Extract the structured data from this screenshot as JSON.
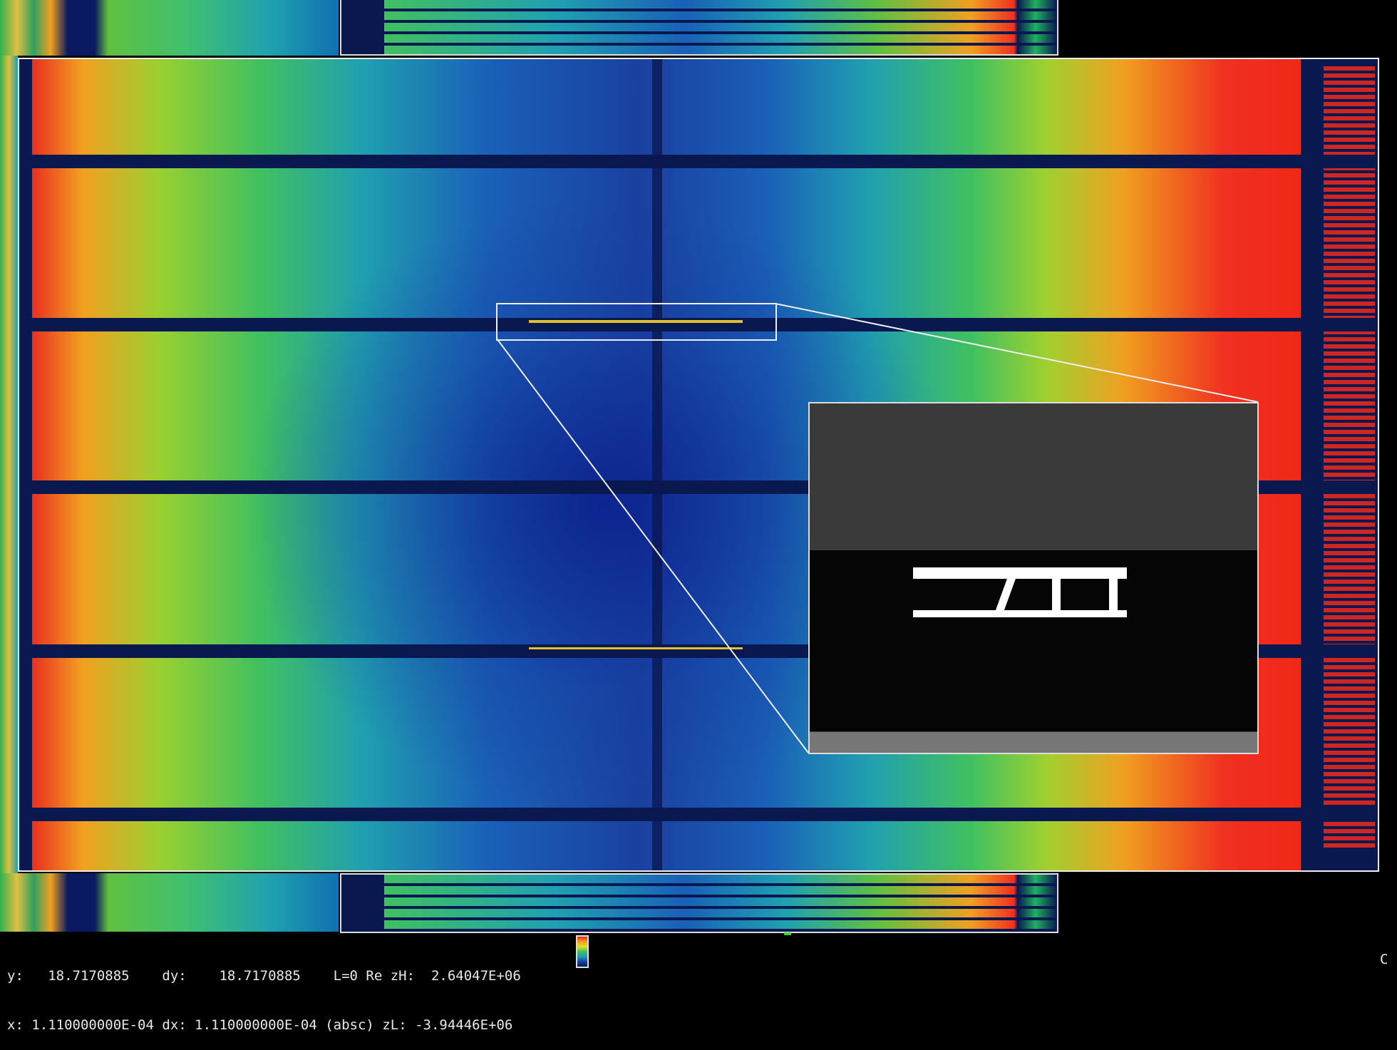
{
  "status": {
    "y_label": "y:",
    "y_value": "18.7170885",
    "dy_label": "dy:",
    "dy_value": "18.7170885",
    "mode": "L=0 Re",
    "zH_label": "zH:",
    "zH_value": "2.64047E+06",
    "x_label": "x:",
    "x_value": "1.110000000E-04",
    "dx_label": "dx:",
    "dx_value": "1.110000000E-04",
    "axis_mode": "(absc)",
    "zL_label": "zL:",
    "zL_value": "-3.94446E+06",
    "corner": "C"
  },
  "colormap": [
    "#f02818",
    "#f0a020",
    "#e0e020",
    "#40c060",
    "#20a0b0",
    "#1a40a0",
    "#0a1850"
  ]
}
